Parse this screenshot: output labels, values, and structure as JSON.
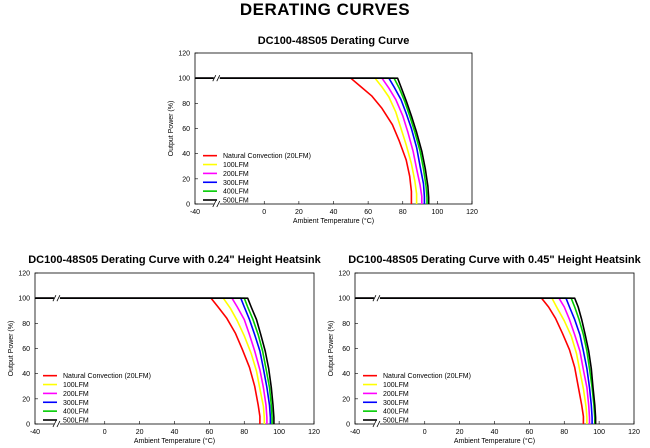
{
  "page_title": "DERATING CURVES",
  "colors": {
    "Natural Convection (20LFM)": "#ff0000",
    "100LFM": "#ffff00",
    "200LFM": "#ff00ff",
    "300LFM": "#0000ff",
    "400LFM": "#00cc00",
    "500LFM": "#000000"
  },
  "chart_data": [
    {
      "type": "line",
      "title": "DC100-48S05 Derating Curve",
      "xlabel": "Ambient Temperature (°C)",
      "ylabel": "Output Power (%)",
      "xlim": [
        -40,
        120
      ],
      "ylim": [
        0,
        120
      ],
      "xticks": [
        "-40",
        "0",
        "20",
        "40",
        "60",
        "80",
        "100",
        "120"
      ],
      "yticks": [
        "0",
        "20",
        "40",
        "60",
        "80",
        "100",
        "120"
      ],
      "axis_break": "between -40 and 0",
      "grid": false,
      "legend_position": "lower-left",
      "series": [
        {
          "name": "Natural Convection (20LFM)",
          "x": [
            -40,
            50,
            56,
            62,
            68,
            74,
            78,
            82,
            84,
            85,
            85
          ],
          "y": [
            100,
            100,
            93,
            86,
            76,
            63,
            50,
            35,
            22,
            10,
            0
          ]
        },
        {
          "name": "100LFM",
          "x": [
            -40,
            64,
            68,
            72,
            76,
            79,
            82,
            85,
            87,
            88,
            88
          ],
          "y": [
            100,
            100,
            93,
            85,
            73,
            60,
            47,
            32,
            18,
            8,
            0
          ]
        },
        {
          "name": "200LFM",
          "x": [
            -40,
            68,
            72,
            76,
            80,
            83,
            86,
            88,
            90,
            91,
            91
          ],
          "y": [
            100,
            100,
            92,
            83,
            70,
            57,
            42,
            28,
            15,
            6,
            0
          ]
        },
        {
          "name": "300LFM",
          "x": [
            -40,
            72,
            75,
            79,
            82,
            85,
            88,
            90,
            92,
            92.5,
            92.5
          ],
          "y": [
            100,
            100,
            93,
            83,
            72,
            60,
            45,
            30,
            16,
            6,
            0
          ]
        },
        {
          "name": "400LFM",
          "x": [
            -40,
            75,
            78,
            81,
            84,
            87,
            90,
            92,
            93.5,
            94,
            94
          ],
          "y": [
            100,
            100,
            92,
            82,
            70,
            57,
            42,
            28,
            14,
            5,
            0
          ]
        },
        {
          "name": "500LFM",
          "x": [
            -40,
            77,
            79,
            82,
            85,
            88,
            91,
            93,
            94.5,
            95,
            95
          ],
          "y": [
            100,
            100,
            93,
            82,
            70,
            57,
            42,
            28,
            14,
            5,
            0
          ]
        }
      ]
    },
    {
      "type": "line",
      "title": "DC100-48S05 Derating Curve with 0.24\" Height Heatsink",
      "xlabel": "Ambient Temperature (°C)",
      "ylabel": "Output Power (%)",
      "xlim": [
        -40,
        120
      ],
      "ylim": [
        0,
        120
      ],
      "xticks": [
        "-40",
        "0",
        "20",
        "40",
        "60",
        "80",
        "100",
        "120"
      ],
      "yticks": [
        "0",
        "20",
        "40",
        "60",
        "80",
        "100",
        "120"
      ],
      "axis_break": "between -40 and 0",
      "grid": false,
      "legend_position": "lower-left",
      "series": [
        {
          "name": "Natural Convection (20LFM)",
          "x": [
            -40,
            61,
            65,
            70,
            75,
            79,
            83,
            86,
            88,
            89,
            89
          ],
          "y": [
            100,
            100,
            93,
            84,
            72,
            59,
            45,
            30,
            15,
            6,
            0
          ]
        },
        {
          "name": "100LFM",
          "x": [
            -40,
            68,
            72,
            76,
            80,
            84,
            87,
            89,
            91,
            91.5,
            91.5
          ],
          "y": [
            100,
            100,
            92,
            82,
            70,
            56,
            42,
            28,
            14,
            5,
            0
          ]
        },
        {
          "name": "200LFM",
          "x": [
            -40,
            73,
            76,
            80,
            83,
            86,
            89,
            91,
            92.5,
            93,
            93
          ],
          "y": [
            100,
            100,
            93,
            83,
            71,
            58,
            43,
            29,
            15,
            5,
            0
          ]
        },
        {
          "name": "300LFM",
          "x": [
            -40,
            78,
            80,
            83,
            86,
            89,
            91,
            93,
            94.5,
            95,
            95
          ],
          "y": [
            100,
            100,
            93,
            83,
            71,
            58,
            44,
            29,
            15,
            5,
            0
          ]
        },
        {
          "name": "400LFM",
          "x": [
            -40,
            80,
            82,
            85,
            88,
            90.5,
            92.5,
            94.5,
            95.5,
            96,
            96
          ],
          "y": [
            100,
            100,
            93,
            83,
            71,
            58,
            44,
            29,
            15,
            5,
            0
          ]
        },
        {
          "name": "500LFM",
          "x": [
            -40,
            82,
            84,
            87,
            89.5,
            92,
            94,
            95.5,
            96.5,
            97,
            97
          ],
          "y": [
            100,
            100,
            93,
            83,
            71,
            58,
            44,
            29,
            15,
            5,
            0
          ]
        }
      ]
    },
    {
      "type": "line",
      "title": "DC100-48S05 Derating Curve with 0.45\" Height Heatsink",
      "xlabel": "Ambient Temperature (°C)",
      "ylabel": "Output Power (%)",
      "xlim": [
        -40,
        120
      ],
      "ylim": [
        0,
        120
      ],
      "xticks": [
        "-40",
        "0",
        "20",
        "40",
        "60",
        "80",
        "100",
        "120"
      ],
      "yticks": [
        "0",
        "20",
        "40",
        "60",
        "80",
        "100",
        "120"
      ],
      "axis_break": "between -40 and 0",
      "grid": false,
      "legend_position": "lower-left",
      "series": [
        {
          "name": "Natural Convection (20LFM)",
          "x": [
            -40,
            67,
            71,
            75,
            79,
            83,
            86,
            88,
            90,
            91,
            91
          ],
          "y": [
            100,
            100,
            93,
            84,
            72,
            59,
            45,
            30,
            15,
            6,
            0
          ]
        },
        {
          "name": "100LFM",
          "x": [
            -40,
            73,
            76,
            80,
            84,
            87,
            89,
            91,
            92.5,
            93,
            93
          ],
          "y": [
            100,
            100,
            92,
            82,
            70,
            56,
            42,
            28,
            14,
            5,
            0
          ]
        },
        {
          "name": "200LFM",
          "x": [
            -40,
            77,
            80,
            83,
            86,
            89,
            91,
            93,
            94,
            94.5,
            94.5
          ],
          "y": [
            100,
            100,
            93,
            83,
            71,
            58,
            43,
            29,
            15,
            5,
            0
          ]
        },
        {
          "name": "300LFM",
          "x": [
            -40,
            81,
            83,
            86,
            89,
            91,
            93,
            94.5,
            95.5,
            96,
            96
          ],
          "y": [
            100,
            100,
            93,
            83,
            71,
            58,
            44,
            29,
            15,
            5,
            0
          ]
        },
        {
          "name": "400LFM",
          "x": [
            -40,
            84,
            86,
            88.5,
            91,
            93,
            94.5,
            96,
            97,
            97.5,
            97.5
          ],
          "y": [
            100,
            100,
            93,
            83,
            71,
            58,
            44,
            29,
            15,
            5,
            0
          ]
        },
        {
          "name": "500LFM",
          "x": [
            -40,
            86,
            88,
            90,
            92,
            94,
            95.5,
            96.5,
            97.5,
            98,
            98
          ],
          "y": [
            100,
            100,
            93,
            83,
            71,
            58,
            44,
            29,
            15,
            5,
            0
          ]
        }
      ]
    }
  ]
}
